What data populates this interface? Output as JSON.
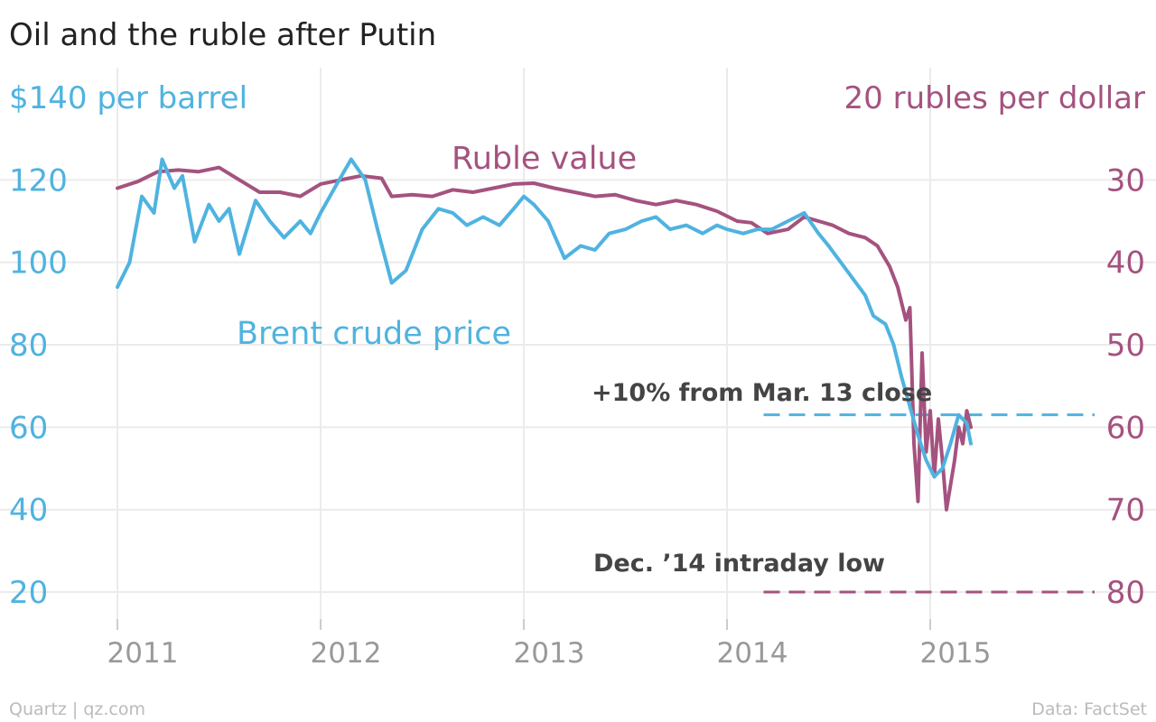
{
  "chart_data": {
    "type": "line",
    "title": "Oil and the ruble after Putin",
    "x_ticks": [
      "2011",
      "2012",
      "2013",
      "2014",
      "2015"
    ],
    "x_range": [
      2011.0,
      2015.8
    ],
    "y_left": {
      "title": "$140 per barrel",
      "ticks": [
        "120",
        "100",
        "80",
        "60",
        "40",
        "20"
      ],
      "range": [
        13,
        140
      ],
      "color": "#4fb3e0"
    },
    "y_right": {
      "title": "20 rubles per dollar",
      "ticks": [
        "30",
        "40",
        "50",
        "60",
        "70",
        "80"
      ],
      "range": [
        20,
        83.5
      ],
      "inverted": true,
      "color": "#a5527f"
    },
    "series": [
      {
        "name": "Brent crude price",
        "axis": "left",
        "color": "#4fb3e0",
        "x": [
          2011.0,
          2011.06,
          2011.12,
          2011.18,
          2011.22,
          2011.28,
          2011.32,
          2011.38,
          2011.45,
          2011.5,
          2011.55,
          2011.6,
          2011.68,
          2011.75,
          2011.82,
          2011.9,
          2011.95,
          2012.0,
          2012.08,
          2012.15,
          2012.22,
          2012.28,
          2012.35,
          2012.42,
          2012.5,
          2012.58,
          2012.65,
          2012.72,
          2012.8,
          2012.88,
          2012.95,
          2013.0,
          2013.05,
          2013.12,
          2013.2,
          2013.28,
          2013.35,
          2013.42,
          2013.5,
          2013.58,
          2013.65,
          2013.72,
          2013.8,
          2013.88,
          2013.95,
          2014.0,
          2014.08,
          2014.15,
          2014.22,
          2014.3,
          2014.38,
          2014.45,
          2014.5,
          2014.56,
          2014.62,
          2014.68,
          2014.72,
          2014.78,
          2014.82,
          2014.86,
          2014.9,
          2014.94,
          2014.98,
          2015.02,
          2015.06,
          2015.1,
          2015.14,
          2015.18,
          2015.2
        ],
        "y": [
          94,
          100,
          116,
          112,
          125,
          118,
          121,
          105,
          114,
          110,
          113,
          102,
          115,
          110,
          106,
          110,
          107,
          112,
          119,
          125,
          120,
          108,
          95,
          98,
          108,
          113,
          112,
          109,
          111,
          109,
          113,
          116,
          114,
          110,
          101,
          104,
          103,
          107,
          108,
          110,
          111,
          108,
          109,
          107,
          109,
          108,
          107,
          108,
          108,
          110,
          112,
          107,
          104,
          100,
          96,
          92,
          87,
          85,
          80,
          72,
          65,
          58,
          52,
          48,
          50,
          56,
          63,
          61,
          56
        ]
      },
      {
        "name": "Ruble value",
        "axis": "right",
        "color": "#a5527f",
        "x": [
          2011.0,
          2011.1,
          2011.2,
          2011.3,
          2011.4,
          2011.5,
          2011.6,
          2011.7,
          2011.8,
          2011.9,
          2012.0,
          2012.1,
          2012.2,
          2012.3,
          2012.35,
          2012.45,
          2012.55,
          2012.65,
          2012.75,
          2012.85,
          2012.95,
          2013.05,
          2013.15,
          2013.25,
          2013.35,
          2013.45,
          2013.55,
          2013.65,
          2013.75,
          2013.85,
          2013.95,
          2014.05,
          2014.12,
          2014.2,
          2014.3,
          2014.38,
          2014.45,
          2014.52,
          2014.6,
          2014.68,
          2014.74,
          2014.8,
          2014.84,
          2014.88,
          2014.9,
          2014.92,
          2014.94,
          2014.96,
          2014.98,
          2015.0,
          2015.02,
          2015.04,
          2015.06,
          2015.08,
          2015.1,
          2015.12,
          2015.14,
          2015.16,
          2015.18,
          2015.2
        ],
        "y": [
          31,
          30.2,
          29,
          28.8,
          29,
          28.5,
          30,
          31.5,
          31.5,
          32,
          30.5,
          30,
          29.5,
          29.8,
          32,
          31.8,
          32,
          31.2,
          31.5,
          31,
          30.5,
          30.4,
          31,
          31.5,
          32,
          31.8,
          32.5,
          33,
          32.5,
          33,
          33.8,
          35,
          35.2,
          36.5,
          36,
          34.5,
          35,
          35.5,
          36.5,
          37,
          38,
          40.5,
          43,
          47,
          45.5,
          62,
          69,
          51,
          63,
          58,
          66,
          59,
          64,
          70,
          67,
          64,
          60,
          62,
          58,
          60
        ]
      }
    ],
    "annotations": [
      {
        "text": "+10% from Mar. 13 close",
        "axis": "left",
        "value": 63,
        "x_start": 2014.18,
        "color": "#4fb3e0"
      },
      {
        "text": "Dec. ’14 intraday low",
        "axis": "right",
        "value": 80,
        "x_start": 2014.18,
        "color": "#a5527f"
      }
    ],
    "grid": true,
    "legend": "inline labels"
  },
  "footer": {
    "source_left": "Quartz | qz.com",
    "source_right": "Data: FactSet"
  }
}
